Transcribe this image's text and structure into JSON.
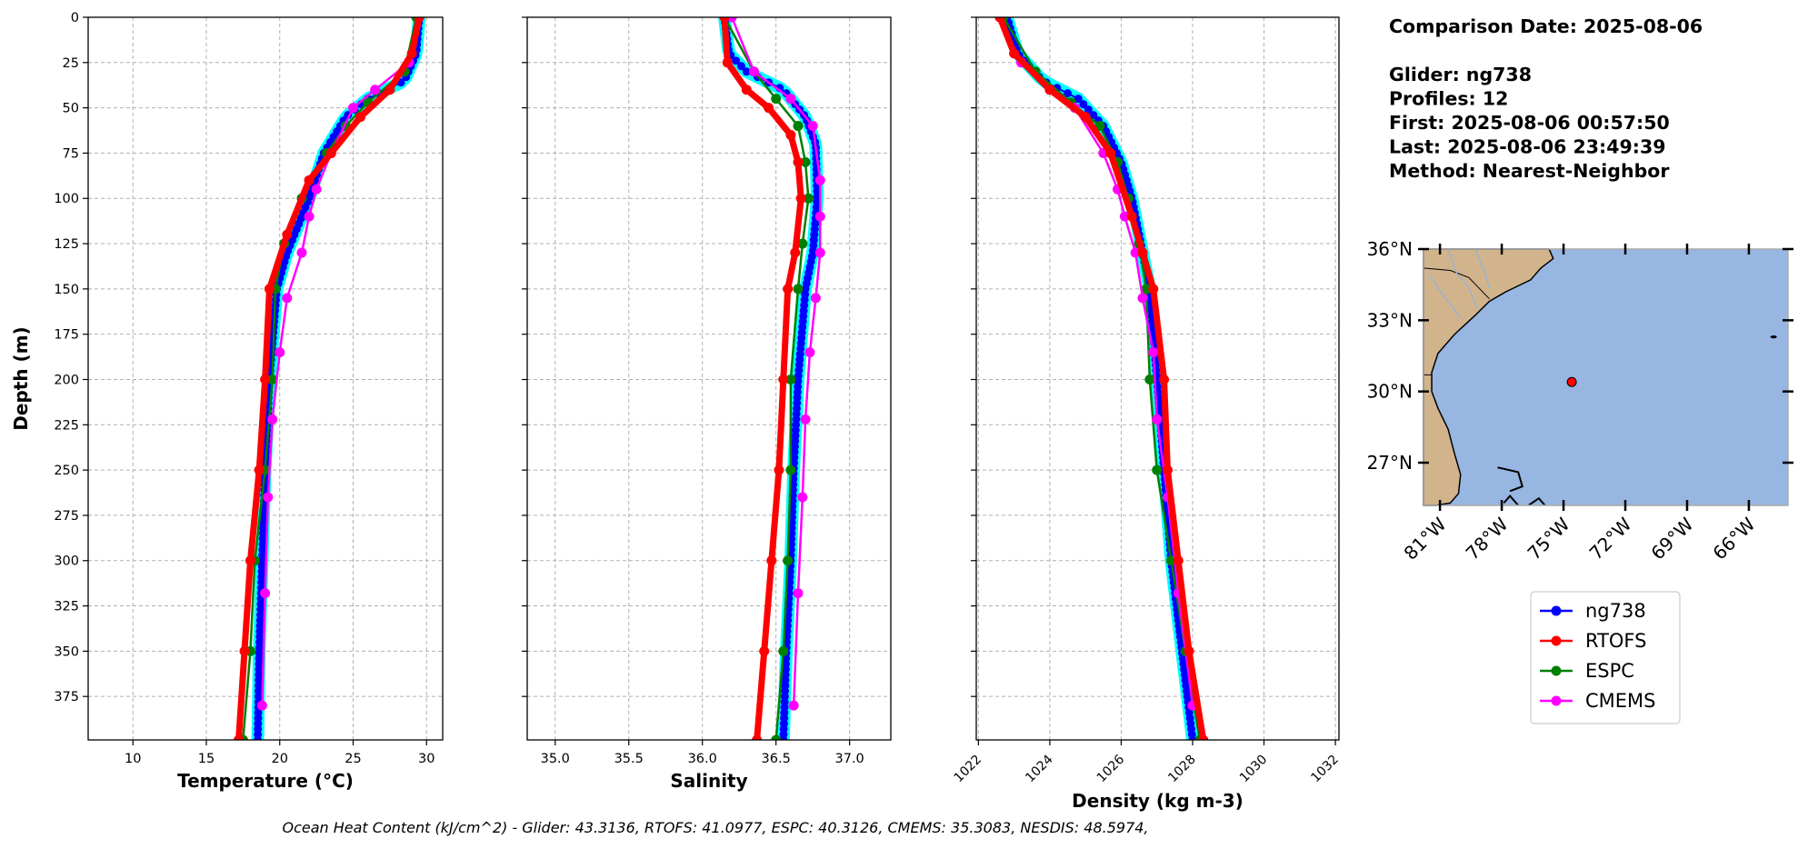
{
  "info": {
    "comparison_date": "Comparison Date: 2025-08-06",
    "glider": "Glider: ng738",
    "profiles": "Profiles: 12",
    "first": "First: 2025-08-06 00:57:50",
    "last": "Last: 2025-08-06 23:49:39",
    "method": "Method: Nearest-Neighbor"
  },
  "footer": "Ocean Heat Content (kJ/cm^2) - Glider: 43.3136,  RTOFS: 41.0977,  ESPC: 40.3126,  CMEMS: 35.3083,  NESDIS: 48.5974,",
  "legend": [
    {
      "name": "ng738",
      "color": "#0000ff"
    },
    {
      "name": "RTOFS",
      "color": "#ff0000"
    },
    {
      "name": "ESPC",
      "color": "#008000"
    },
    {
      "name": "CMEMS",
      "color": "#ff00ff"
    }
  ],
  "map": {
    "lat_ticks": [
      "36°N",
      "33°N",
      "30°N",
      "27°N"
    ],
    "lat_values": [
      36,
      33,
      30,
      27
    ],
    "lon_ticks": [
      "81°W",
      "78°W",
      "75°W",
      "72°W",
      "69°W",
      "66°W"
    ],
    "lon_values": [
      -81,
      -78,
      -75,
      -72,
      -69,
      -66
    ],
    "lon_range": [
      -81.8,
      -64.1
    ],
    "lat_range": [
      25.2,
      36.0
    ],
    "glider_position": {
      "lon": -74.6,
      "lat": 30.4
    },
    "land_color": "#d2b48c",
    "ocean_color": "#97b6e1"
  },
  "chart_data": [
    {
      "type": "line",
      "id": "temperature",
      "xlabel": "Temperature (°C)",
      "ylabel": "Depth (m)",
      "xlim": [
        6.95,
        31.1
      ],
      "ylim": [
        399,
        0
      ],
      "xticks": [
        10,
        15,
        20,
        25,
        30
      ],
      "xtick_labels": [
        "10",
        "15",
        "20",
        "25",
        "30"
      ],
      "yticks": [
        0,
        25,
        50,
        75,
        100,
        125,
        150,
        175,
        200,
        225,
        250,
        275,
        300,
        325,
        350,
        375
      ],
      "grid": true,
      "series": [
        {
          "name": "ng738",
          "depth": [
            0,
            20,
            35,
            45,
            55,
            75,
            100,
            130,
            150,
            200,
            250,
            300,
            350,
            399
          ],
          "values": [
            29.5,
            29.3,
            28.5,
            26,
            24.5,
            23,
            22,
            20.5,
            19.8,
            19.3,
            19,
            18.8,
            18.6,
            18.5
          ]
        },
        {
          "name": "RTOFS",
          "depth": [
            0,
            20,
            40,
            55,
            75,
            90,
            120,
            150,
            200,
            250,
            300,
            350,
            399
          ],
          "values": [
            29.5,
            29,
            27.5,
            25.5,
            23.5,
            22,
            20.5,
            19.3,
            19,
            18.6,
            18,
            17.6,
            17.2
          ]
        },
        {
          "name": "ESPC",
          "depth": [
            0,
            30,
            47,
            60,
            75,
            100,
            125,
            150,
            200,
            250,
            300,
            350,
            399
          ],
          "values": [
            29.3,
            28.5,
            26,
            24.5,
            23.2,
            21.5,
            20.3,
            19.7,
            19.5,
            19,
            18.3,
            18,
            17.5
          ]
        },
        {
          "name": "CMEMS",
          "depth": [
            0,
            25,
            40,
            50,
            75,
            95,
            110,
            130,
            155,
            185,
            222,
            265,
            318,
            380
          ],
          "values": [
            29.5,
            28.8,
            26.5,
            25,
            23.5,
            22.5,
            22,
            21.5,
            20.5,
            20,
            19.5,
            19.2,
            19,
            18.8
          ]
        }
      ]
    },
    {
      "type": "line",
      "id": "salinity",
      "xlabel": "Salinity",
      "ylabel": "",
      "xlim": [
        34.81,
        37.28
      ],
      "ylim": [
        399,
        0
      ],
      "xticks": [
        35.0,
        35.5,
        36.0,
        36.5,
        37.0
      ],
      "xtick_labels": [
        "35.0",
        "35.5",
        "36.0",
        "36.5",
        "37.0"
      ],
      "yticks": [
        0,
        25,
        50,
        75,
        100,
        125,
        150,
        175,
        200,
        225,
        250,
        275,
        300,
        325,
        350,
        375
      ],
      "grid": true,
      "series": [
        {
          "name": "ng738",
          "depth": [
            0,
            20,
            30,
            40,
            55,
            70,
            100,
            130,
            150,
            200,
            250,
            300,
            350,
            399
          ],
          "values": [
            36.15,
            36.18,
            36.3,
            36.55,
            36.7,
            36.77,
            36.78,
            36.75,
            36.7,
            36.65,
            36.62,
            36.6,
            36.57,
            36.55
          ]
        },
        {
          "name": "RTOFS",
          "depth": [
            0,
            25,
            40,
            50,
            65,
            80,
            100,
            130,
            150,
            200,
            250,
            300,
            350,
            399
          ],
          "values": [
            36.15,
            36.17,
            36.3,
            36.45,
            36.6,
            36.65,
            36.67,
            36.63,
            36.58,
            36.55,
            36.52,
            36.47,
            36.42,
            36.37
          ]
        },
        {
          "name": "ESPC",
          "depth": [
            0,
            30,
            45,
            60,
            80,
            100,
            125,
            150,
            200,
            250,
            300,
            350,
            399
          ],
          "values": [
            36.15,
            36.35,
            36.5,
            36.65,
            36.7,
            36.72,
            36.68,
            36.65,
            36.6,
            36.6,
            36.58,
            36.55,
            36.5
          ]
        },
        {
          "name": "CMEMS",
          "depth": [
            0,
            30,
            45,
            60,
            90,
            110,
            130,
            155,
            185,
            222,
            265,
            318,
            380
          ],
          "values": [
            36.2,
            36.35,
            36.6,
            36.75,
            36.8,
            36.8,
            36.8,
            36.77,
            36.73,
            36.7,
            36.68,
            36.65,
            36.62
          ]
        }
      ]
    },
    {
      "type": "line",
      "id": "density",
      "xlabel": "Density (kg m-3)",
      "ylabel": "",
      "xlim": [
        1021.94,
        1032.1
      ],
      "ylim": [
        399,
        0
      ],
      "xticks": [
        1022,
        1024,
        1026,
        1028,
        1030,
        1032
      ],
      "xtick_labels": [
        "1022",
        "1024",
        "1026",
        "1028",
        "1030",
        "1032"
      ],
      "yticks": [
        0,
        25,
        50,
        75,
        100,
        125,
        150,
        175,
        200,
        225,
        250,
        275,
        300,
        325,
        350,
        375
      ],
      "grid": true,
      "series": [
        {
          "name": "ng738",
          "depth": [
            0,
            20,
            35,
            45,
            60,
            80,
            100,
            130,
            150,
            200,
            250,
            300,
            350,
            399
          ],
          "values": [
            1022.8,
            1023.1,
            1023.8,
            1024.8,
            1025.5,
            1026,
            1026.3,
            1026.6,
            1026.8,
            1027,
            1027.2,
            1027.4,
            1027.7,
            1028
          ]
        },
        {
          "name": "RTOFS",
          "depth": [
            0,
            20,
            40,
            55,
            75,
            110,
            130,
            150,
            200,
            250,
            300,
            350,
            399
          ],
          "values": [
            1022.6,
            1023,
            1024,
            1025,
            1025.7,
            1026.3,
            1026.6,
            1026.9,
            1027.2,
            1027.3,
            1027.6,
            1027.9,
            1028.3
          ]
        },
        {
          "name": "ESPC",
          "depth": [
            0,
            30,
            47,
            60,
            80,
            100,
            125,
            150,
            200,
            250,
            300,
            350,
            399
          ],
          "values": [
            1022.7,
            1023.6,
            1024.6,
            1025.4,
            1025.9,
            1026.2,
            1026.5,
            1026.7,
            1026.8,
            1027.0,
            1027.4,
            1027.8,
            1028.2
          ]
        },
        {
          "name": "CMEMS",
          "depth": [
            0,
            25,
            40,
            50,
            75,
            95,
            110,
            130,
            155,
            185,
            222,
            265,
            318,
            380
          ],
          "values": [
            1022.6,
            1023.2,
            1024.0,
            1024.7,
            1025.5,
            1025.9,
            1026.1,
            1026.4,
            1026.6,
            1026.9,
            1027.0,
            1027.3,
            1027.6,
            1028.0
          ]
        }
      ]
    }
  ]
}
